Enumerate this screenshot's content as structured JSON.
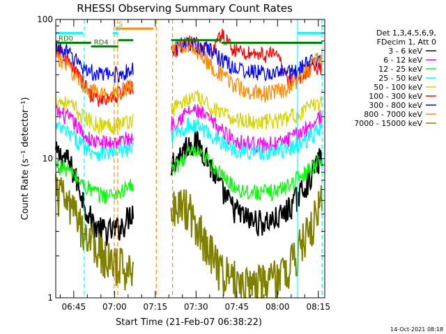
{
  "chart_data": {
    "type": "line",
    "title": "RHESSI Observing Summary Count Rates",
    "xlabel": "Start Time (21-Feb-07 06:38:22)",
    "ylabel": "Count Rate (s⁻¹ detector⁻¹)",
    "yscale": "log",
    "ylim": [
      1,
      100
    ],
    "xlim_minutes": [
      0,
      99
    ],
    "y_ticks": [
      {
        "value": 1,
        "label": "1"
      },
      {
        "value": 10,
        "label": "10"
      },
      {
        "value": 100,
        "label": "100"
      }
    ],
    "x_ticks": [
      {
        "t": 6.63,
        "label": "06:45"
      },
      {
        "t": 21.63,
        "label": "07:00"
      },
      {
        "t": 36.63,
        "label": "07:15"
      },
      {
        "t": 51.63,
        "label": "07:30"
      },
      {
        "t": 66.63,
        "label": "07:45"
      },
      {
        "t": 81.63,
        "label": "08:00"
      },
      {
        "t": 96.63,
        "label": "08:15"
      }
    ],
    "legend": {
      "header": [
        "Det 1,3,4,5,6,9,",
        "FDecim 1, Att 0"
      ],
      "placement": "right"
    },
    "gaps": [
      [
        28.5,
        42.5
      ]
    ],
    "series": [
      {
        "name": "3 - 6 keV",
        "color": "#000000",
        "points": [
          [
            0,
            11
          ],
          [
            4,
            10
          ],
          [
            6,
            8.5
          ],
          [
            9,
            6
          ],
          [
            12,
            4
          ],
          [
            15,
            3.2
          ],
          [
            19,
            3
          ],
          [
            22,
            3.1
          ],
          [
            25,
            3.4
          ],
          [
            28,
            4.2
          ],
          [
            43,
            9.5
          ],
          [
            46,
            11
          ],
          [
            49,
            13
          ],
          [
            52,
            13
          ],
          [
            55,
            11
          ],
          [
            58,
            8
          ],
          [
            61,
            6
          ],
          [
            65,
            4.5
          ],
          [
            68,
            4
          ],
          [
            72,
            3.6
          ],
          [
            76,
            3.5
          ],
          [
            80,
            3.6
          ],
          [
            84,
            4
          ],
          [
            88,
            5
          ],
          [
            92,
            6.5
          ],
          [
            95,
            8.5
          ],
          [
            98,
            10.5
          ]
        ]
      },
      {
        "name": "6 - 12 keV",
        "color": "#ff00ff",
        "points": [
          [
            0,
            22
          ],
          [
            4,
            20
          ],
          [
            7,
            18
          ],
          [
            10,
            15
          ],
          [
            13,
            13.5
          ],
          [
            16,
            13
          ],
          [
            20,
            13
          ],
          [
            24,
            13.5
          ],
          [
            28,
            14
          ],
          [
            43,
            18
          ],
          [
            46,
            20
          ],
          [
            49,
            22
          ],
          [
            52,
            22
          ],
          [
            55,
            20
          ],
          [
            58,
            18
          ],
          [
            61,
            16
          ],
          [
            65,
            14
          ],
          [
            69,
            13
          ],
          [
            73,
            12.8
          ],
          [
            77,
            12.5
          ],
          [
            81,
            12.8
          ],
          [
            85,
            13.5
          ],
          [
            89,
            15
          ],
          [
            93,
            17
          ],
          [
            96,
            19
          ],
          [
            98,
            21
          ]
        ]
      },
      {
        "name": "12 - 25 keV",
        "color": "#00ff00",
        "points": [
          [
            0,
            9
          ],
          [
            4,
            8.5
          ],
          [
            7,
            7.5
          ],
          [
            10,
            6.5
          ],
          [
            13,
            6
          ],
          [
            16,
            5.5
          ],
          [
            20,
            5.5
          ],
          [
            24,
            5.8
          ],
          [
            28,
            6.5
          ],
          [
            43,
            8.5
          ],
          [
            46,
            9.5
          ],
          [
            49,
            11
          ],
          [
            52,
            11
          ],
          [
            55,
            10
          ],
          [
            58,
            9
          ],
          [
            61,
            7.5
          ],
          [
            65,
            6.5
          ],
          [
            68,
            6
          ],
          [
            72,
            5.8
          ],
          [
            76,
            5.7
          ],
          [
            80,
            5.8
          ],
          [
            84,
            6.2
          ],
          [
            88,
            7
          ],
          [
            92,
            8
          ],
          [
            96,
            9.5
          ],
          [
            98,
            10.5
          ]
        ]
      },
      {
        "name": "25 - 50 keV",
        "color": "#00ffff",
        "points": [
          [
            0,
            17
          ],
          [
            4,
            15.5
          ],
          [
            7,
            14
          ],
          [
            10,
            12.5
          ],
          [
            13,
            11.5
          ],
          [
            16,
            11
          ],
          [
            20,
            11
          ],
          [
            24,
            11.5
          ],
          [
            28,
            12
          ],
          [
            43,
            14.5
          ],
          [
            46,
            16
          ],
          [
            49,
            17.5
          ],
          [
            52,
            17.5
          ],
          [
            55,
            16
          ],
          [
            58,
            14.5
          ],
          [
            61,
            13
          ],
          [
            65,
            12
          ],
          [
            69,
            11.5
          ],
          [
            73,
            11.3
          ],
          [
            77,
            11.2
          ],
          [
            81,
            11.3
          ],
          [
            85,
            11.8
          ],
          [
            89,
            12.5
          ],
          [
            93,
            14
          ],
          [
            96,
            15.5
          ],
          [
            98,
            16.5
          ]
        ]
      },
      {
        "name": "50 - 100 keV",
        "color": "#d4d400",
        "points": [
          [
            0,
            27
          ],
          [
            4,
            25
          ],
          [
            7,
            23
          ],
          [
            10,
            20
          ],
          [
            13,
            18.5
          ],
          [
            16,
            17.5
          ],
          [
            20,
            17.5
          ],
          [
            24,
            18
          ],
          [
            28,
            19
          ],
          [
            43,
            23
          ],
          [
            46,
            25
          ],
          [
            49,
            27
          ],
          [
            52,
            27.5
          ],
          [
            55,
            25
          ],
          [
            58,
            23
          ],
          [
            61,
            21
          ],
          [
            65,
            19.5
          ],
          [
            69,
            19
          ],
          [
            73,
            18.5
          ],
          [
            77,
            18.5
          ],
          [
            81,
            18.8
          ],
          [
            85,
            19.5
          ],
          [
            89,
            21
          ],
          [
            93,
            23
          ],
          [
            96,
            25
          ],
          [
            98,
            26
          ]
        ]
      },
      {
        "name": "100 - 300 keV",
        "color": "#ff0000",
        "points": [
          [
            0,
            62
          ],
          [
            4,
            52
          ],
          [
            7,
            42
          ],
          [
            10,
            35
          ],
          [
            13,
            29
          ],
          [
            16,
            26
          ],
          [
            20,
            27
          ],
          [
            24,
            30
          ],
          [
            28,
            33
          ],
          [
            43,
            58
          ],
          [
            46,
            64
          ],
          [
            49,
            68
          ],
          [
            52,
            66
          ],
          [
            55,
            60
          ],
          [
            58,
            62
          ],
          [
            61,
            78
          ],
          [
            63,
            70
          ],
          [
            66,
            60
          ],
          [
            70,
            58
          ],
          [
            74,
            57
          ],
          [
            78,
            56
          ],
          [
            82,
            55
          ],
          [
            85,
            37
          ],
          [
            88,
            38
          ],
          [
            91,
            40
          ],
          [
            94,
            43
          ],
          [
            97,
            46
          ],
          [
            98,
            47
          ]
        ]
      },
      {
        "name": "300 - 800 keV",
        "color": "#0000ff",
        "points": [
          [
            0,
            63
          ],
          [
            4,
            58
          ],
          [
            7,
            52
          ],
          [
            10,
            46
          ],
          [
            13,
            42
          ],
          [
            16,
            40
          ],
          [
            20,
            40
          ],
          [
            24,
            41
          ],
          [
            28,
            43
          ],
          [
            43,
            60
          ],
          [
            46,
            66
          ],
          [
            49,
            68
          ],
          [
            52,
            66
          ],
          [
            55,
            62
          ],
          [
            58,
            58
          ],
          [
            61,
            52
          ],
          [
            65,
            46
          ],
          [
            69,
            43
          ],
          [
            73,
            42
          ],
          [
            77,
            41
          ],
          [
            81,
            41
          ],
          [
            85,
            42
          ],
          [
            89,
            44
          ],
          [
            93,
            48
          ],
          [
            96,
            53
          ],
          [
            98,
            56
          ]
        ]
      },
      {
        "name": "800 - 7000 keV",
        "color": "#ff8c00",
        "points": [
          [
            0,
            55
          ],
          [
            4,
            48
          ],
          [
            7,
            40
          ],
          [
            10,
            34
          ],
          [
            13,
            31
          ],
          [
            16,
            29
          ],
          [
            20,
            29
          ],
          [
            24,
            31
          ],
          [
            28,
            33
          ],
          [
            43,
            62
          ],
          [
            46,
            66
          ],
          [
            49,
            65
          ],
          [
            52,
            60
          ],
          [
            55,
            52
          ],
          [
            58,
            45
          ],
          [
            61,
            40
          ],
          [
            64,
            36
          ],
          [
            67,
            33
          ],
          [
            70,
            31
          ],
          [
            73,
            30
          ],
          [
            77,
            29.5
          ],
          [
            81,
            30
          ],
          [
            85,
            32
          ],
          [
            89,
            37
          ],
          [
            93,
            44
          ],
          [
            96,
            52
          ],
          [
            98,
            57
          ]
        ]
      },
      {
        "name": "7000 - 15000 keV",
        "color": "#808000",
        "points": [
          [
            0,
            6
          ],
          [
            4,
            5
          ],
          [
            7,
            4
          ],
          [
            10,
            3.2
          ],
          [
            13,
            2.7
          ],
          [
            16,
            2.2
          ],
          [
            20,
            1.8
          ],
          [
            24,
            1.7
          ],
          [
            28,
            1.7
          ],
          [
            43,
            4.5
          ],
          [
            46,
            4.8
          ],
          [
            49,
            4.5
          ],
          [
            52,
            3.5
          ],
          [
            55,
            2.6
          ],
          [
            58,
            2
          ],
          [
            61,
            1.6
          ],
          [
            65,
            1.4
          ],
          [
            69,
            1.3
          ],
          [
            73,
            1.3
          ],
          [
            77,
            1.3
          ],
          [
            81,
            1.4
          ],
          [
            85,
            1.6
          ],
          [
            89,
            2.2
          ],
          [
            93,
            3
          ],
          [
            96,
            4
          ],
          [
            98,
            5
          ]
        ]
      }
    ],
    "overlays": [
      {
        "label": "RD0",
        "color": "#008000",
        "y": 68,
        "x1": 0,
        "x2": 13
      },
      {
        "label": "RD4",
        "color": "#008000",
        "y": 64,
        "x1": 13,
        "x2": 23
      },
      {
        "label": "",
        "color": "#008000",
        "y": 71,
        "x1": 23,
        "x2": 28.5
      },
      {
        "label": "",
        "color": "#008000",
        "y": 71,
        "x1": 42.5,
        "x2": 61
      },
      {
        "label": "",
        "color": "#008000",
        "y": 68,
        "x1": 61,
        "x2": 98
      },
      {
        "label": "S",
        "color": "#ff8c00",
        "y": 86,
        "x1": 22,
        "x2": 36
      },
      {
        "label": "N",
        "color": "#00ffff",
        "y": 80,
        "x1": 21,
        "x2": 23
      },
      {
        "label": "",
        "color": "#00ffff",
        "y": 80,
        "x1": 0,
        "x2": 10
      },
      {
        "label": "",
        "color": "#00ffff",
        "y": 80,
        "x1": 89,
        "x2": 98
      }
    ],
    "vlines": [
      {
        "t": 10.5,
        "color": "#00ffff",
        "dashed": true
      },
      {
        "t": 21.5,
        "color": "#ff8c00",
        "dashed": true
      },
      {
        "t": 22.8,
        "color": "#ff8c00",
        "dashed": true
      },
      {
        "t": 37.0,
        "color": "#ff8c00",
        "dashed": true
      },
      {
        "t": 43.0,
        "color": "#ff8c00",
        "dashed": true
      },
      {
        "t": 89.0,
        "color": "#00ffff",
        "dashed": false
      },
      {
        "t": 98.0,
        "color": "#00ffff",
        "dashed": true
      }
    ],
    "timestamp": "14-Oct-2021 08:18"
  }
}
